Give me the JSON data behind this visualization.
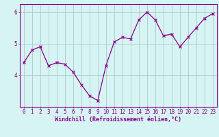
{
  "x": [
    0,
    1,
    2,
    3,
    4,
    5,
    6,
    7,
    8,
    9,
    10,
    11,
    12,
    13,
    14,
    15,
    16,
    17,
    18,
    19,
    20,
    21,
    22,
    23
  ],
  "y": [
    4.4,
    4.8,
    4.9,
    4.3,
    4.4,
    4.35,
    4.1,
    3.7,
    3.35,
    3.2,
    4.3,
    5.05,
    5.2,
    5.15,
    5.75,
    6.0,
    5.75,
    5.25,
    5.3,
    4.9,
    5.2,
    5.5,
    5.8,
    5.95
  ],
  "line_color": "#880088",
  "marker": "x",
  "marker_size": 3,
  "bg_color": "#d6f4f4",
  "grid_color": "#b0c8c8",
  "xlabel": "Windchill (Refroidissement éolien,°C)",
  "xlabel_color": "#880088",
  "tick_color": "#880088",
  "ylim": [
    3.0,
    6.25
  ],
  "xlim": [
    -0.5,
    23.5
  ],
  "yticks": [
    4,
    5,
    6
  ],
  "xticks": [
    0,
    1,
    2,
    3,
    4,
    5,
    6,
    7,
    8,
    9,
    10,
    11,
    12,
    13,
    14,
    15,
    16,
    17,
    18,
    19,
    20,
    21,
    22,
    23
  ],
  "xlabel_fontsize": 6.0,
  "tick_fontsize": 5.5,
  "linewidth": 0.9,
  "spine_color": "#880088"
}
